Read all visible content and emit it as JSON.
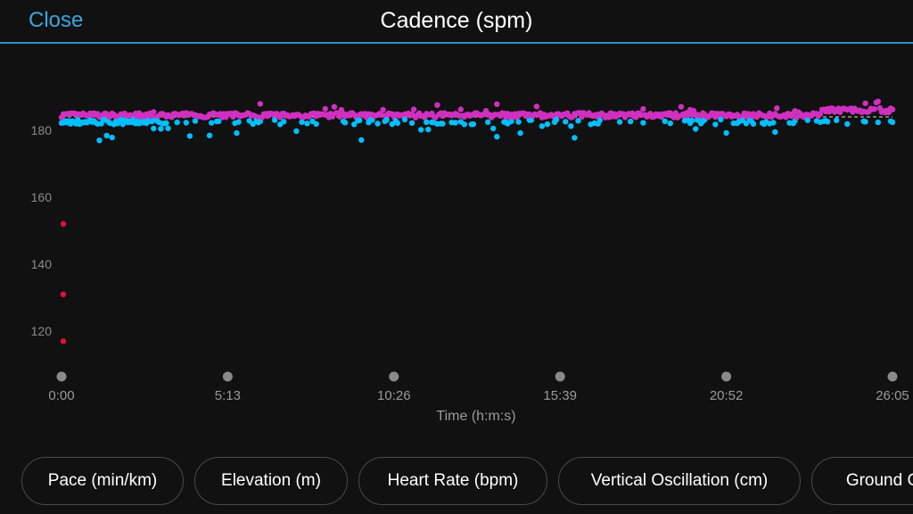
{
  "header": {
    "close_label": "Close",
    "title": "Cadence (spm)"
  },
  "colors": {
    "background": "#111111",
    "accent": "#3aa6e0",
    "upper_points": "#d030c0",
    "lower_points": "#00bfff",
    "outlier_points": "#e0103a"
  },
  "chart_data": {
    "type": "scatter",
    "xlabel": "Time (h:m:s)",
    "x_tick_labels": [
      "0:00",
      "5:13",
      "10:26",
      "15:39",
      "20:52",
      "26:05"
    ],
    "y_ticks": [
      120,
      140,
      160,
      180
    ],
    "ylim": [
      110,
      195
    ],
    "duration_seconds": 1565,
    "series": [
      {
        "color": "#d030c0",
        "approx_range": [
          183,
          189
        ],
        "typical": 184.5
      },
      {
        "color": "#00bfff",
        "approx_range": [
          176,
          184
        ],
        "typical": 182.5
      },
      {
        "color": "#e0103a",
        "points": [
          [
            0,
            152
          ],
          [
            0,
            131
          ],
          [
            0,
            117
          ]
        ]
      }
    ],
    "reference_line": 184
  },
  "tabs": [
    "Pace (min/km)",
    "Elevation (m)",
    "Heart Rate (bpm)",
    "Vertical Oscillation (cm)",
    "Ground C"
  ]
}
